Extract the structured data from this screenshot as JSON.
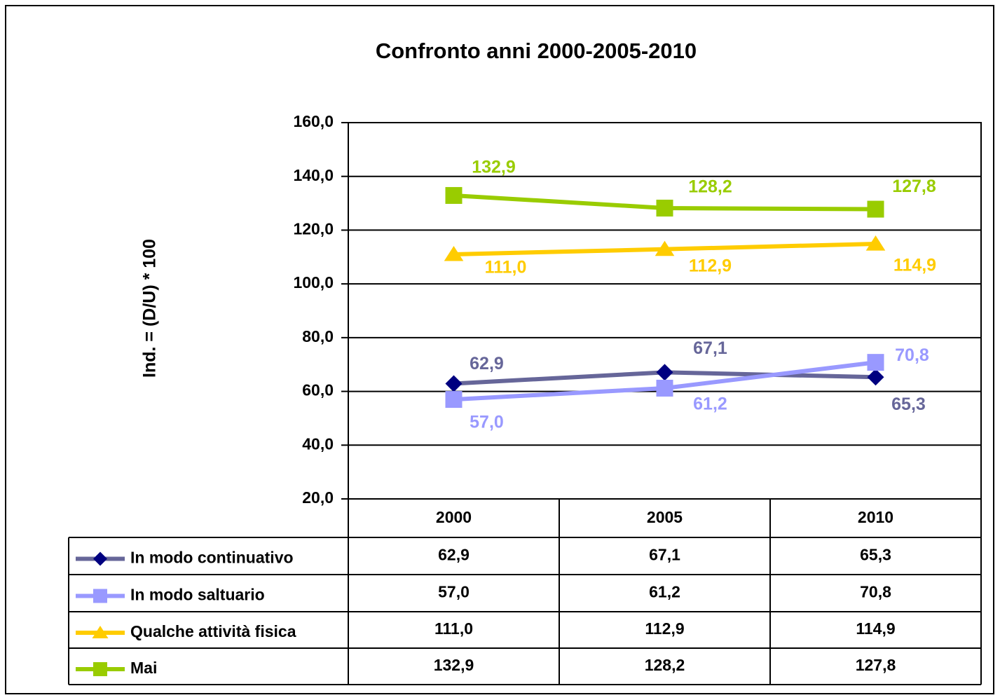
{
  "chart_data": {
    "type": "line",
    "title": "Confronto anni  2000-2005-2010",
    "y_label": "Ind. = (D/U) * 100",
    "categories": [
      "2000",
      "2005",
      "2010"
    ],
    "ylim": [
      20,
      160
    ],
    "yticks": [
      {
        "value": 20,
        "label": "20,0"
      },
      {
        "value": 40,
        "label": "40,0"
      },
      {
        "value": 60,
        "label": "60,0"
      },
      {
        "value": 80,
        "label": "80,0"
      },
      {
        "value": 100,
        "label": "100,0"
      },
      {
        "value": 120,
        "label": "120,0"
      },
      {
        "value": 140,
        "label": "140,0"
      },
      {
        "value": 160,
        "label": "160,0"
      }
    ],
    "grid": true,
    "data_table": true,
    "series": [
      {
        "name": "In modo continuativo",
        "color": "#666699",
        "marker_color": "#000080",
        "marker": "diamond",
        "values": [
          62.9,
          67.1,
          65.3
        ],
        "value_labels": [
          "62,9",
          "67,1",
          "65,3"
        ]
      },
      {
        "name": "In modo saltuario",
        "color": "#9999ff",
        "marker_color": "#9999ff",
        "marker": "square",
        "values": [
          57.0,
          61.2,
          70.8
        ],
        "value_labels": [
          "57,0",
          "61,2",
          "70,8"
        ]
      },
      {
        "name": "Qualche attività fisica",
        "color": "#ffcc00",
        "marker_color": "#ffcc00",
        "marker": "triangle",
        "values": [
          111.0,
          112.9,
          114.9
        ],
        "value_labels": [
          "111,0",
          "112,9",
          "114,9"
        ]
      },
      {
        "name": "Mai",
        "color": "#99cc00",
        "marker_color": "#99cc00",
        "marker": "square",
        "values": [
          132.9,
          128.2,
          127.8
        ],
        "value_labels": [
          "132,9",
          "128,2",
          "127,8"
        ]
      }
    ]
  }
}
